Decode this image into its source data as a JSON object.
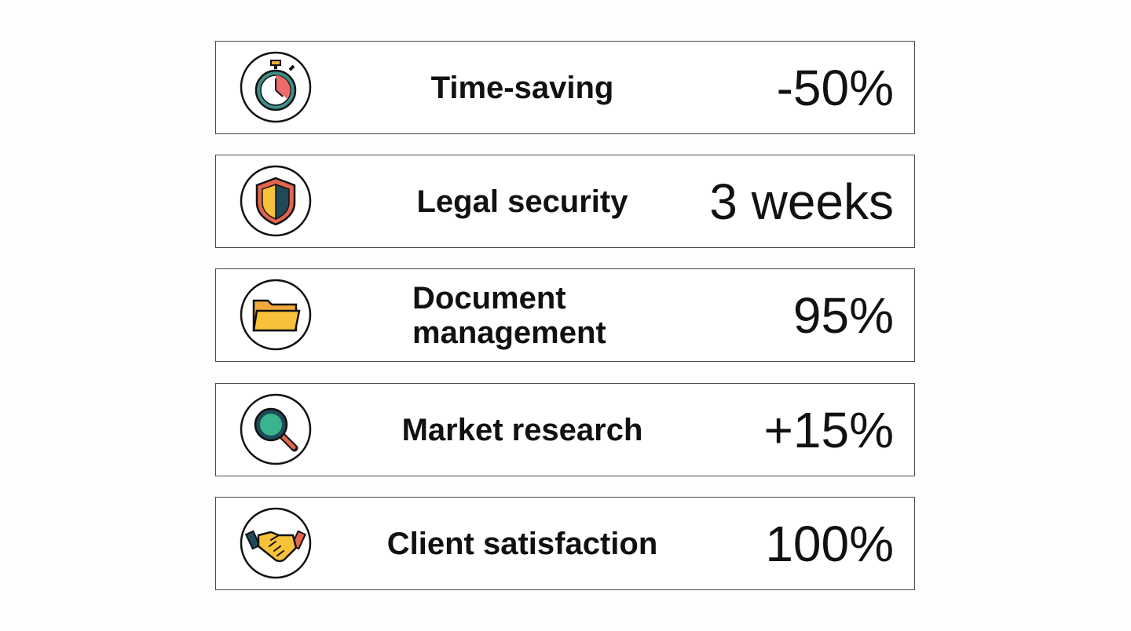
{
  "rows": [
    {
      "label": "Time-saving",
      "value": "-50%"
    },
    {
      "label": "Legal security",
      "value": "3 weeks"
    },
    {
      "label": "Document management",
      "value": "95%"
    },
    {
      "label": "Market research",
      "value": "+15%"
    },
    {
      "label": "Client satisfaction",
      "value": "100%"
    }
  ]
}
